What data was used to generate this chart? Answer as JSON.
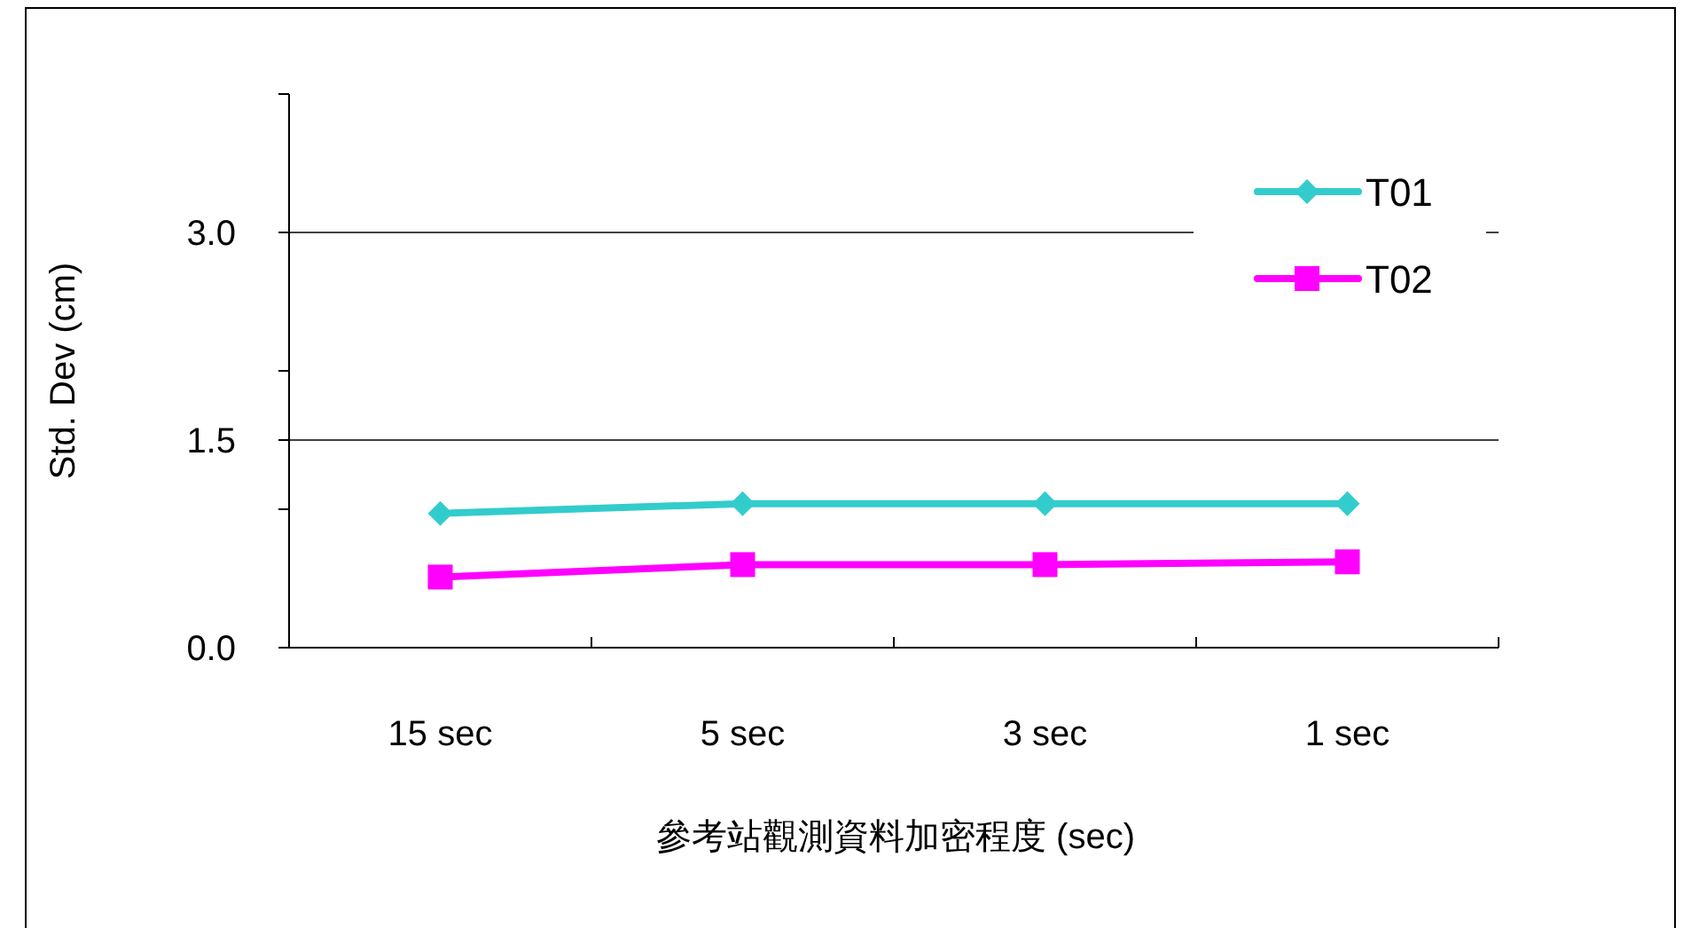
{
  "chart_data": {
    "type": "line",
    "xlabel": "參考站觀測資料加密程度 (sec)",
    "ylabel": "Std. Dev (cm)",
    "categories": [
      "15 sec",
      "5 sec",
      "3 sec",
      "1 sec"
    ],
    "series": [
      {
        "name": "T01",
        "color": "#33cccc",
        "marker": "diamond",
        "values": [
          0.97,
          1.04,
          1.04,
          1.04
        ]
      },
      {
        "name": "T02",
        "color": "#ff00ff",
        "marker": "square",
        "values": [
          0.51,
          0.6,
          0.6,
          0.62
        ]
      }
    ],
    "ylim": [
      0,
      4
    ],
    "yticks": [
      {
        "value": 0,
        "label": "0.0"
      },
      {
        "value": 1,
        "label": null
      },
      {
        "value": 1.5,
        "label": "1.5"
      },
      {
        "value": 2,
        "label": null
      },
      {
        "value": 3,
        "label": "3.0"
      },
      {
        "value": 4,
        "label": null
      }
    ],
    "grid": "y",
    "legend": "top right",
    "line_style": "solid"
  }
}
